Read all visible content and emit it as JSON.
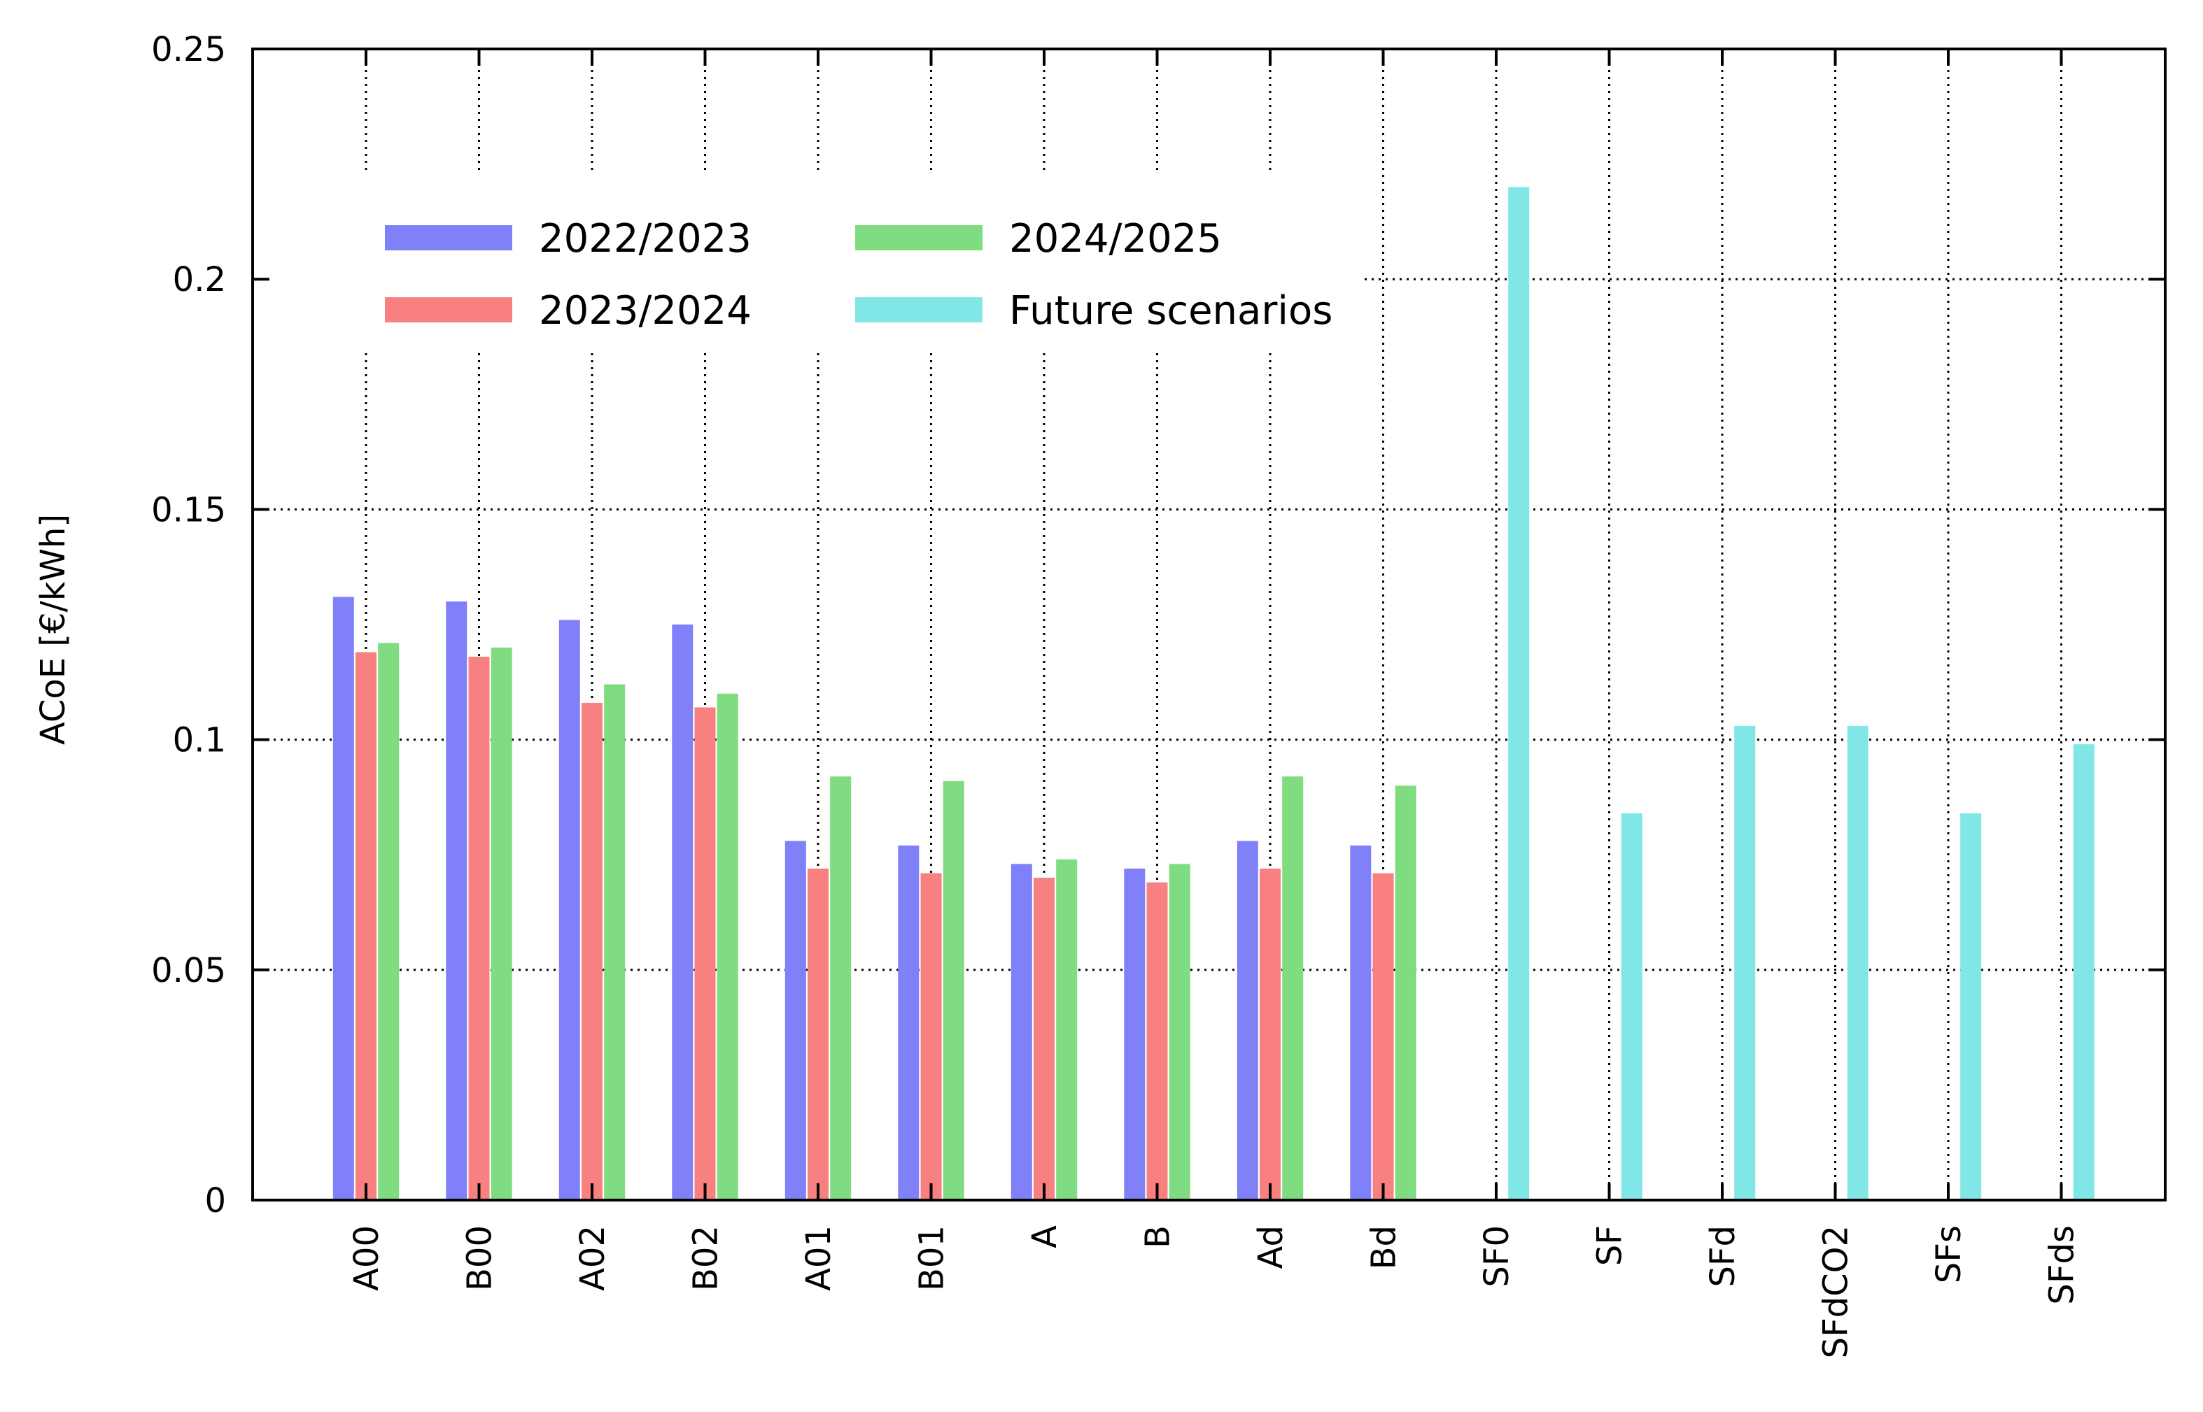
{
  "chart_data": {
    "type": "bar",
    "ylabel": "ACoE [€/kWh]",
    "ylim": [
      0,
      0.25
    ],
    "yticks": [
      {
        "value": 0,
        "label": "0"
      },
      {
        "value": 0.05,
        "label": "0.05"
      },
      {
        "value": 0.1,
        "label": "0.1"
      },
      {
        "value": 0.15,
        "label": "0.15"
      },
      {
        "value": 0.2,
        "label": "0.2"
      },
      {
        "value": 0.25,
        "label": "0.25"
      }
    ],
    "categories": [
      "A00",
      "B00",
      "A02",
      "B02",
      "A01",
      "B01",
      "A",
      "B",
      "Ad",
      "Bd",
      "SF0",
      "SF",
      "SFd",
      "SFdCO2",
      "SFs",
      "SFds"
    ],
    "grid": "dotted",
    "legend_position": "top-left",
    "series": [
      {
        "name": "2022/2023",
        "color": "#8080f8",
        "values": [
          0.131,
          0.13,
          0.126,
          0.125,
          0.078,
          0.077,
          0.073,
          0.072,
          0.078,
          0.077,
          null,
          null,
          null,
          null,
          null,
          null
        ]
      },
      {
        "name": "2023/2024",
        "color": "#f88080",
        "values": [
          0.119,
          0.118,
          0.108,
          0.107,
          0.072,
          0.071,
          0.07,
          0.069,
          0.072,
          0.071,
          null,
          null,
          null,
          null,
          null,
          null
        ]
      },
      {
        "name": "2024/2025",
        "color": "#80dc80",
        "values": [
          0.121,
          0.12,
          0.112,
          0.11,
          0.092,
          0.091,
          0.074,
          0.073,
          0.092,
          0.09,
          null,
          null,
          null,
          null,
          null,
          null
        ]
      },
      {
        "name": "Future scenarios",
        "color": "#80e6e6",
        "values": [
          null,
          null,
          null,
          null,
          null,
          null,
          null,
          null,
          null,
          null,
          0.22,
          0.084,
          0.103,
          0.103,
          0.084,
          0.099
        ]
      }
    ]
  }
}
